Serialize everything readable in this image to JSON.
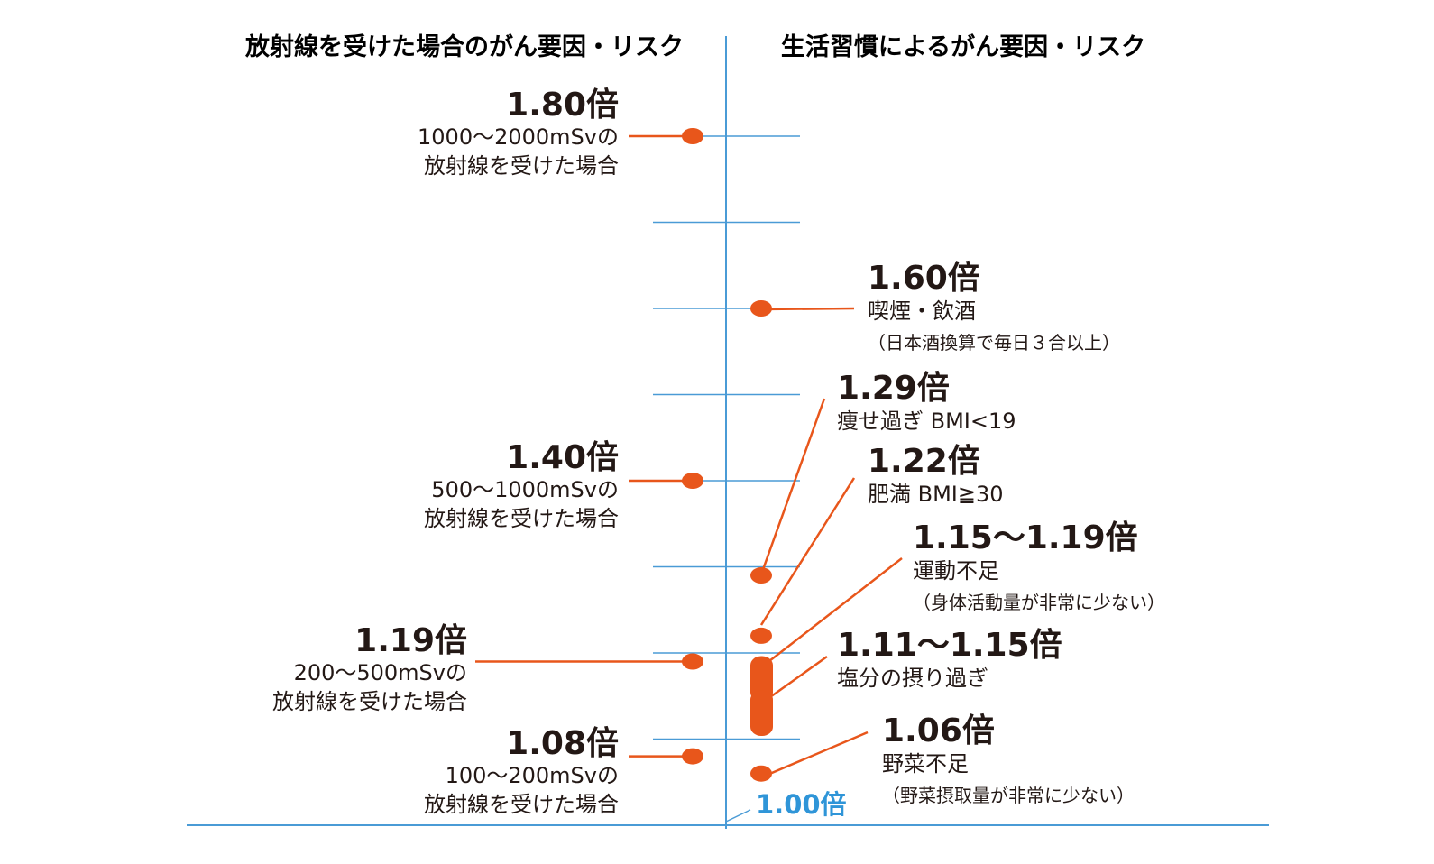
{
  "colors": {
    "axis": "#4a9bd6",
    "marker": "#e8561b",
    "text": "#231815",
    "baseline_label": "#2f95d8"
  },
  "chart_data": {
    "type": "scatter",
    "ylim": [
      1.0,
      1.8
    ],
    "y_tick_step": 0.1,
    "baseline_label": "1.00倍",
    "columns": {
      "left": {
        "title": "放射線を受けた場合のがん要因・リスク"
      },
      "right": {
        "title": "生活習慣によるがん要因・リスク"
      }
    },
    "left": [
      {
        "value": 1.8,
        "value_label": "1.80倍",
        "lines": [
          "1000〜2000mSvの",
          "放射線を受けた場合"
        ]
      },
      {
        "value": 1.4,
        "value_label": "1.40倍",
        "lines": [
          "500〜1000mSvの",
          "放射線を受けた場合"
        ]
      },
      {
        "value": 1.19,
        "value_label": "1.19倍",
        "lines": [
          "200〜500mSvの",
          "放射線を受けた場合"
        ]
      },
      {
        "value": 1.08,
        "value_label": "1.08倍",
        "lines": [
          "100〜200mSvの",
          "放射線を受けた場合"
        ]
      }
    ],
    "right": [
      {
        "value": 1.6,
        "value_label": "1.60倍",
        "lines": [
          "喫煙・飲酒",
          "（日本酒換算で毎日３合以上）"
        ]
      },
      {
        "value": 1.29,
        "value_label": "1.29倍",
        "lines": [
          "痩せ過ぎ BMI<19"
        ]
      },
      {
        "value": 1.22,
        "value_label": "1.22倍",
        "lines": [
          "肥満 BMI≧30"
        ]
      },
      {
        "value": [
          1.15,
          1.19
        ],
        "value_label": "1.15〜1.19倍",
        "lines": [
          "運動不足",
          "（身体活動量が非常に少ない）"
        ]
      },
      {
        "value": [
          1.11,
          1.15
        ],
        "value_label": "1.11〜1.15倍",
        "lines": [
          "塩分の摂り過ぎ"
        ]
      },
      {
        "value": 1.06,
        "value_label": "1.06倍",
        "lines": [
          "野菜不足",
          "（野菜摂取量が非常に少ない）"
        ]
      }
    ]
  }
}
